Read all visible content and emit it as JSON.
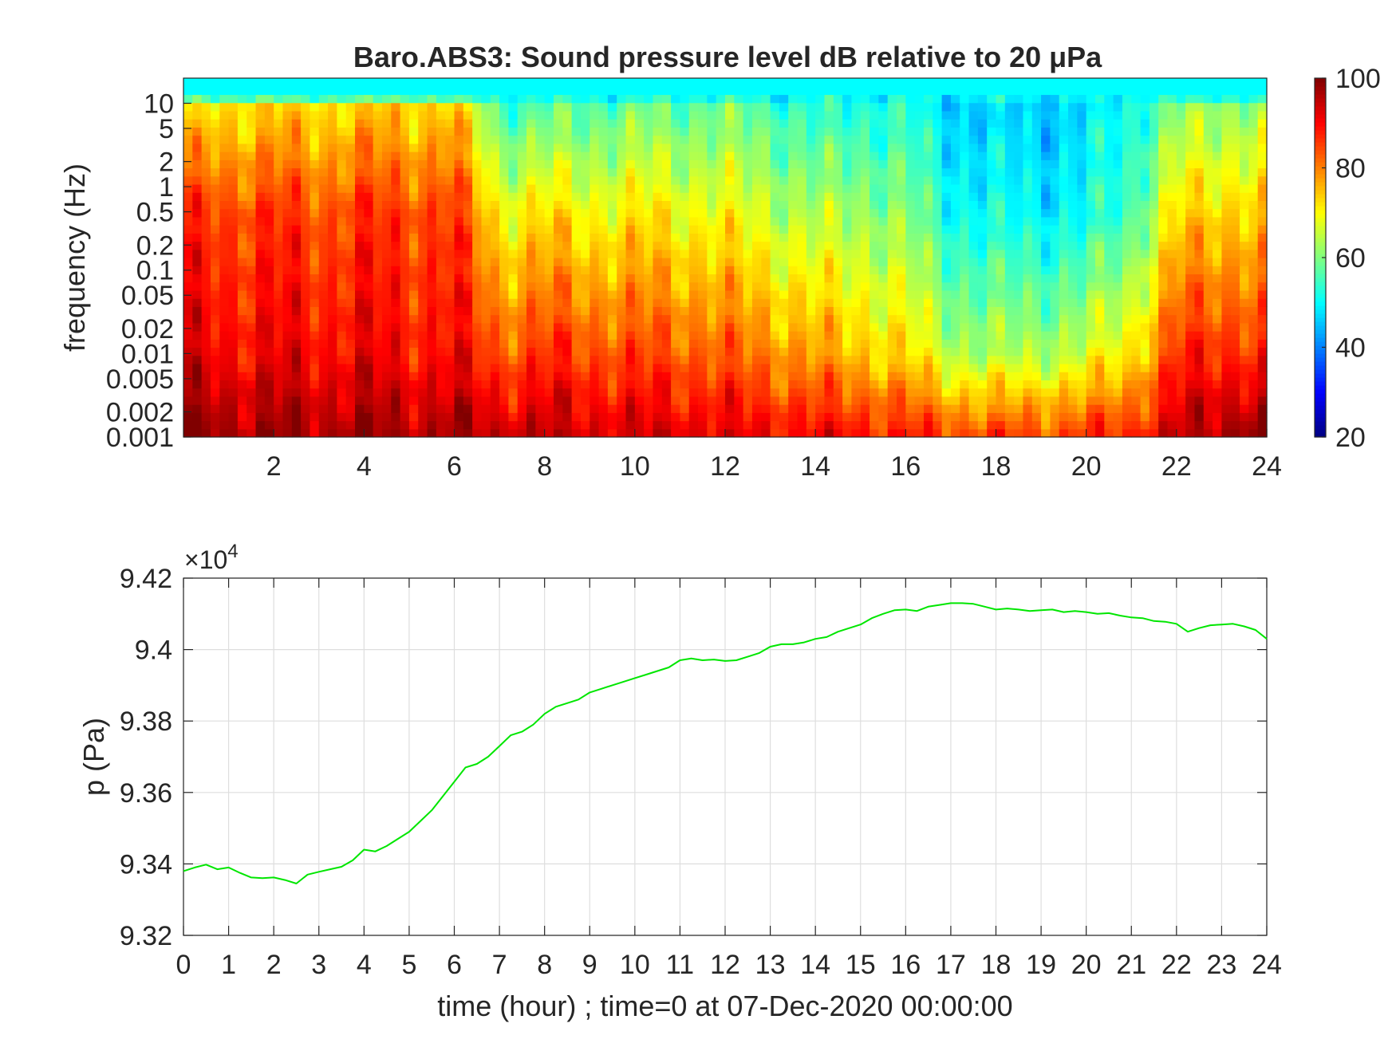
{
  "chart_data": [
    {
      "type": "heatmap",
      "title": "Baro.ABS3: Sound pressure level dB relative to 20 μPa",
      "xlabel": "",
      "ylabel": "frequency (Hz)",
      "xlim": [
        0,
        24
      ],
      "ylim": [
        0.001,
        20
      ],
      "yscale": "log",
      "x_ticks": [
        2,
        4,
        6,
        8,
        10,
        12,
        14,
        16,
        18,
        20,
        22,
        24
      ],
      "y_ticks": [
        {
          "value": 10,
          "label": "10"
        },
        {
          "value": 5,
          "label": "5"
        },
        {
          "value": 2,
          "label": "2"
        },
        {
          "value": 1,
          "label": "1"
        },
        {
          "value": 0.5,
          "label": "0.5"
        },
        {
          "value": 0.2,
          "label": "0.2"
        },
        {
          "value": 0.1,
          "label": "0.1"
        },
        {
          "value": 0.05,
          "label": "0.05"
        },
        {
          "value": 0.02,
          "label": "0.02"
        },
        {
          "value": 0.01,
          "label": "0.01"
        },
        {
          "value": 0.005,
          "label": "0.005"
        },
        {
          "value": 0.002,
          "label": "0.002"
        },
        {
          "value": 0.001,
          "label": "0.001"
        }
      ],
      "colormap": "jet",
      "colorbar": {
        "range": [
          20,
          100
        ],
        "ticks": [
          100,
          80,
          60,
          40,
          20
        ]
      },
      "grid": false,
      "level_profile_db": {
        "hours": [
          0,
          1,
          2,
          3,
          4,
          5,
          6,
          7,
          8,
          9,
          10,
          11,
          12,
          13,
          14,
          15,
          16,
          17,
          18,
          19,
          20,
          21,
          22,
          23,
          24
        ],
        "high_freq_10Hz": [
          70,
          72,
          73,
          72,
          74,
          73,
          74,
          56,
          56,
          57,
          58,
          58,
          58,
          56,
          52,
          53,
          52,
          47,
          46,
          46,
          47,
          52,
          60,
          62,
          62
        ],
        "mid_freq_0_5Hz": [
          86,
          85,
          86,
          84,
          86,
          85,
          86,
          70,
          72,
          70,
          71,
          70,
          69,
          66,
          63,
          63,
          60,
          52,
          50,
          50,
          50,
          56,
          72,
          74,
          74
        ],
        "low_freq_0_01Hz": [
          92,
          90,
          91,
          90,
          91,
          89,
          90,
          84,
          86,
          85,
          84,
          84,
          82,
          80,
          77,
          75,
          72,
          65,
          63,
          64,
          66,
          72,
          86,
          88,
          86
        ],
        "lowest_freq_0_001Hz": [
          99,
          98,
          98,
          97,
          98,
          97,
          97,
          95,
          95,
          94,
          93,
          93,
          92,
          91,
          90,
          90,
          88,
          86,
          85,
          86,
          86,
          88,
          94,
          98,
          100
        ]
      }
    },
    {
      "type": "line",
      "title": "",
      "xlabel": "time (hour) ; time=0 at 07-Dec-2020 00:00:00",
      "ylabel": "p (Pa)",
      "xlim": [
        0,
        24
      ],
      "ylim": [
        93200,
        94200
      ],
      "x_ticks": [
        0,
        1,
        2,
        3,
        4,
        5,
        6,
        7,
        8,
        9,
        10,
        11,
        12,
        13,
        14,
        15,
        16,
        17,
        18,
        19,
        20,
        21,
        22,
        23,
        24
      ],
      "y_ticks": [
        {
          "value": 93200,
          "label": "9.32"
        },
        {
          "value": 93400,
          "label": "9.34"
        },
        {
          "value": 93600,
          "label": "9.36"
        },
        {
          "value": 93800,
          "label": "9.38"
        },
        {
          "value": 94000,
          "label": "9.4"
        },
        {
          "value": 94200,
          "label": "9.42"
        }
      ],
      "y_multiplier_label": "×10",
      "y_multiplier_exponent": "4",
      "grid": true,
      "series": [
        {
          "color": "#00e600",
          "x": [
            0,
            0.25,
            0.5,
            0.75,
            1,
            1.25,
            1.5,
            1.75,
            2,
            2.25,
            2.5,
            2.75,
            3,
            3.25,
            3.5,
            3.75,
            4,
            4.25,
            4.5,
            4.75,
            5,
            5.25,
            5.5,
            5.75,
            6,
            6.25,
            6.5,
            6.75,
            7,
            7.25,
            7.5,
            7.75,
            8,
            8.25,
            8.5,
            8.75,
            9,
            9.25,
            9.5,
            9.75,
            10,
            10.25,
            10.5,
            10.75,
            11,
            11.25,
            11.5,
            11.75,
            12,
            12.25,
            12.5,
            12.75,
            13,
            13.25,
            13.5,
            13.75,
            14,
            14.25,
            14.5,
            14.75,
            15,
            15.25,
            15.5,
            15.75,
            16,
            16.25,
            16.5,
            16.75,
            17,
            17.25,
            17.5,
            17.75,
            18,
            18.25,
            18.5,
            18.75,
            19,
            19.25,
            19.5,
            19.75,
            20,
            20.25,
            20.5,
            20.75,
            21,
            21.25,
            21.5,
            21.75,
            22,
            22.25,
            22.5,
            22.75,
            23,
            23.25,
            23.5,
            23.75,
            24
          ],
          "y": [
            93380,
            93390,
            93398,
            93385,
            93390,
            93375,
            93362,
            93360,
            93362,
            93355,
            93345,
            93370,
            93378,
            93385,
            93392,
            93410,
            93440,
            93435,
            93450,
            93470,
            93490,
            93520,
            93550,
            93590,
            93630,
            93670,
            93680,
            93700,
            93730,
            93760,
            93770,
            93790,
            93820,
            93840,
            93850,
            93860,
            93880,
            93890,
            93900,
            93910,
            93920,
            93930,
            93940,
            93950,
            93970,
            93975,
            93970,
            93972,
            93968,
            93970,
            93980,
            93990,
            94008,
            94015,
            94015,
            94020,
            94030,
            94035,
            94050,
            94060,
            94070,
            94088,
            94100,
            94110,
            94112,
            94108,
            94120,
            94125,
            94130,
            94130,
            94128,
            94120,
            94112,
            94115,
            94112,
            94108,
            94110,
            94112,
            94105,
            94108,
            94105,
            94100,
            94102,
            94095,
            94090,
            94088,
            94080,
            94078,
            94072,
            94050,
            94060,
            94068,
            94070,
            94072,
            94065,
            94055,
            94030
          ]
        }
      ]
    }
  ]
}
